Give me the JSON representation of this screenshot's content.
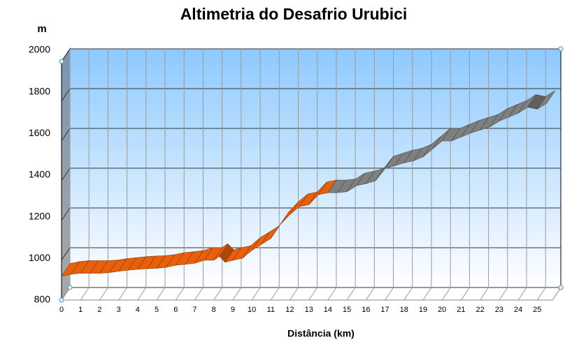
{
  "chart_data": {
    "type": "ribbon3d",
    "title": "Altimetria do Desafrio Urubici",
    "y_label": "m",
    "x_label": "Distância (km)",
    "x": [
      0,
      0.5,
      1,
      1.5,
      2,
      2.5,
      3,
      3.5,
      4,
      4.5,
      5,
      5.5,
      6,
      6.5,
      7,
      7.5,
      8,
      8.3,
      8.6,
      9,
      9.5,
      10,
      10.5,
      11,
      11.5,
      12,
      12.5,
      13,
      13.5,
      14,
      14.5,
      15,
      15.5,
      16,
      16.5,
      17,
      17.5,
      18,
      18.5,
      19,
      19.5,
      20,
      20.5,
      21,
      21.5,
      22,
      22.5,
      23,
      23.5,
      24,
      24.5,
      25,
      25.5
    ],
    "series": [
      {
        "color": "#e8600c",
        "values": [
          920,
          930,
          935,
          935,
          935,
          938,
          945,
          950,
          955,
          958,
          960,
          965,
          975,
          980,
          985,
          1000,
          1000,
          1020,
          990,
          1000,
          1010,
          1050,
          1080,
          1110,
          1180,
          1230,
          1270,
          1280,
          1330,
          1340,
          null,
          null,
          null,
          null,
          null,
          null,
          null,
          null,
          null,
          null,
          null,
          null,
          null,
          null,
          null,
          null,
          null,
          null,
          null,
          null,
          null,
          null,
          null
        ]
      },
      {
        "color": "#7f7f7f",
        "values": [
          null,
          null,
          null,
          null,
          null,
          null,
          null,
          null,
          null,
          null,
          null,
          null,
          null,
          null,
          null,
          null,
          null,
          null,
          null,
          null,
          null,
          null,
          null,
          null,
          null,
          null,
          null,
          null,
          null,
          1340,
          1340,
          1345,
          1375,
          1385,
          1400,
          1460,
          1475,
          1490,
          1500,
          1520,
          1560,
          1600,
          1600,
          1620,
          1640,
          1655,
          1670,
          1700,
          1720,
          1740,
          1770,
          1760,
          1790
        ]
      }
    ],
    "xlim": [
      0,
      25.8
    ],
    "ylim": [
      800,
      2000
    ],
    "xticks": [
      0,
      1,
      2,
      3,
      4,
      5,
      6,
      7,
      8,
      9,
      10,
      11,
      12,
      13,
      14,
      15,
      16,
      17,
      18,
      19,
      20,
      21,
      22,
      23,
      24,
      25
    ],
    "yticks": [
      800,
      1000,
      1200,
      1400,
      1600,
      1800,
      2000
    ],
    "grid": true
  }
}
